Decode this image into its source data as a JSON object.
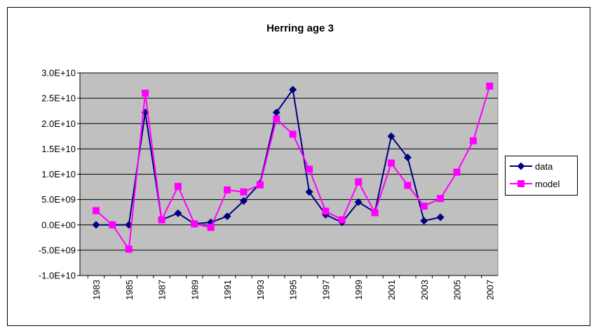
{
  "chart_data": {
    "type": "line",
    "title": "Herring age 3",
    "categories": [
      "1983",
      null,
      "1985",
      null,
      "1987",
      null,
      "1989",
      null,
      "1991",
      null,
      "1993",
      null,
      "1995",
      null,
      "1997",
      null,
      "1999",
      null,
      "2001",
      null,
      "2003",
      null,
      "2005",
      null,
      "2007"
    ],
    "series": [
      {
        "name": "data",
        "color": "#000080",
        "marker": "diamond",
        "values": [
          0,
          0,
          0,
          22200000000,
          1000000000,
          2300000000,
          200000000,
          500000000,
          1700000000,
          4700000000,
          8200000000,
          22200000000,
          26700000000,
          6500000000,
          2000000000,
          500000000,
          4500000000,
          2500000000,
          17500000000,
          13300000000,
          800000000,
          1500000000,
          null,
          null,
          null
        ]
      },
      {
        "name": "model",
        "color": "#FF00FF",
        "marker": "square",
        "values": [
          2800000000,
          0,
          -4800000000,
          26000000000,
          1000000000,
          7600000000,
          200000000,
          -500000000,
          6900000000,
          6500000000,
          7900000000,
          20900000000,
          17900000000,
          11000000000,
          2700000000,
          1000000000,
          8500000000,
          2400000000,
          12200000000,
          7800000000,
          3700000000,
          5200000000,
          10400000000,
          16600000000,
          27400000000
        ]
      }
    ],
    "ylim": [
      -10000000000,
      30000000000
    ],
    "yticks": [
      {
        "value": -10000000000,
        "label": "-1.0E+10"
      },
      {
        "value": -5000000000,
        "label": "-5.0E+09"
      },
      {
        "value": 0,
        "label": "0.0E+00"
      },
      {
        "value": 5000000000,
        "label": "5.0E+09"
      },
      {
        "value": 10000000000,
        "label": "1.0E+10"
      },
      {
        "value": 15000000000,
        "label": "1.5E+10"
      },
      {
        "value": 20000000000,
        "label": "2.0E+10"
      },
      {
        "value": 25000000000,
        "label": "2.5E+10"
      },
      {
        "value": 30000000000,
        "label": "3.0E+10"
      }
    ],
    "grid": true,
    "legend": "right"
  }
}
